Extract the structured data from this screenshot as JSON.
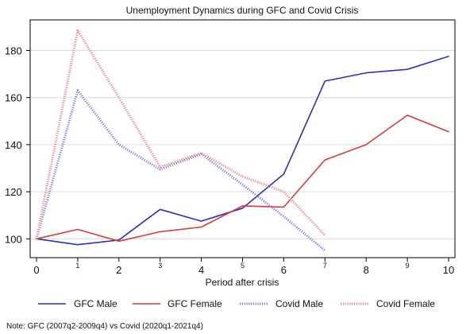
{
  "chart_data": {
    "type": "line",
    "title": "Unemployment Dynamics during GFC and Covid Crisis",
    "xlabel": "Period after crisis",
    "ylabel": "",
    "xlim": [
      0,
      10
    ],
    "ylim": [
      92,
      193
    ],
    "x_ticks": [
      "0",
      "1",
      "2",
      "3",
      "4",
      "5",
      "6",
      "7",
      "8",
      "9",
      "10"
    ],
    "x_tick_small": [
      false,
      true,
      false,
      true,
      false,
      true,
      false,
      true,
      false,
      true,
      false
    ],
    "y_ticks": [
      "100",
      "120",
      "140",
      "160",
      "180"
    ],
    "y_tick_values": [
      100,
      120,
      140,
      160,
      180
    ],
    "grid": true,
    "legend_position": "bottom",
    "note": "Note: GFC (2007q2-2009q4) vs Covid (2020q1-2021q4)",
    "series": [
      {
        "name": "GFC Male",
        "color": "#2f2fbf",
        "style": "solid",
        "x": [
          0,
          1,
          2,
          3,
          4,
          5,
          6,
          7,
          8,
          9,
          10
        ],
        "values": [
          100,
          97.5,
          99.5,
          112.5,
          107.5,
          113,
          127.5,
          167,
          170.5,
          172,
          177.5
        ]
      },
      {
        "name": "GFC Female",
        "color": "#d93a3a",
        "style": "solid",
        "x": [
          0,
          1,
          2,
          3,
          4,
          5,
          6,
          7,
          8,
          9,
          10
        ],
        "values": [
          100,
          104,
          99,
          103,
          105,
          114,
          113.5,
          133.5,
          140,
          152.5,
          145.5
        ]
      },
      {
        "name": "Covid Male",
        "color": "#7f83e6",
        "style": "dotted",
        "x": [
          0,
          1,
          2,
          3,
          4,
          5,
          6,
          7
        ],
        "values": [
          100,
          163,
          140,
          129.5,
          136,
          123,
          109.5,
          95
        ]
      },
      {
        "name": "Covid Female",
        "color": "#f08a8f",
        "style": "dotted",
        "x": [
          0,
          1,
          2,
          3,
          4,
          5,
          6,
          7
        ],
        "values": [
          100,
          188.5,
          160,
          130.5,
          136.5,
          126.5,
          120,
          101.5
        ]
      }
    ]
  }
}
